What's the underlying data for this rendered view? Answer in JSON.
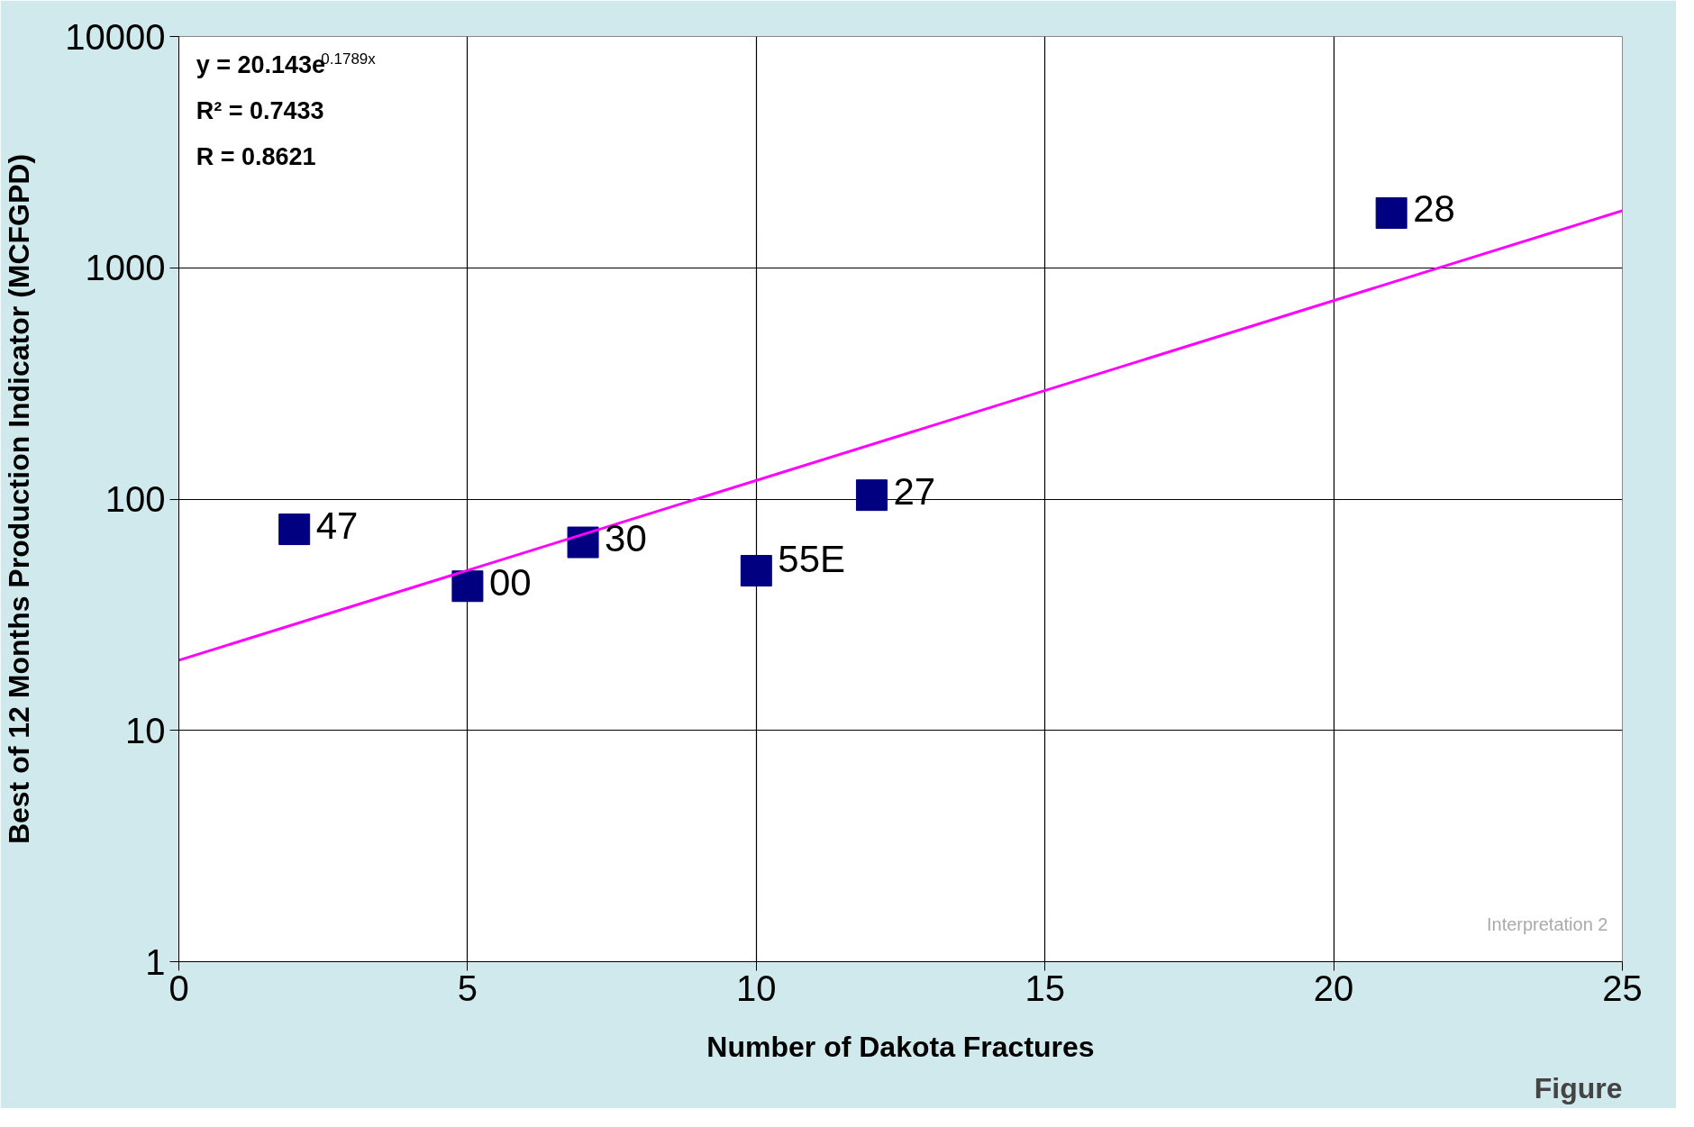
{
  "chart_data": {
    "type": "scatter",
    "xlabel": "Number of Dakota Fractures",
    "ylabel": "Best of 12 Months Production Indicator (MCFGPD)",
    "log": "y",
    "xlim": [
      0,
      25
    ],
    "xticks": [
      0,
      5,
      10,
      15,
      20,
      25
    ],
    "ylim": [
      1,
      10000
    ],
    "yticks": [
      1,
      10,
      100,
      1000,
      10000
    ],
    "grid": true,
    "series": [
      {
        "marker": "square",
        "color": "#000080",
        "x": [
          2,
          5,
          7,
          10,
          12,
          21
        ],
        "values": [
          74,
          42,
          65,
          49,
          104,
          1725
        ]
      },
      {
        "type": "line",
        "color": "#ff00ff",
        "x": [
          0,
          25
        ],
        "values": [
          20.1,
          1765
        ]
      }
    ],
    "annotations": [
      {
        "text": "47",
        "x": 2,
        "y": 74
      },
      {
        "text": "00",
        "x": 5,
        "y": 42
      },
      {
        "text": "30",
        "x": 7,
        "y": 65
      },
      {
        "text": "55E",
        "x": 10,
        "y": 49
      },
      {
        "text": "27",
        "x": 12,
        "y": 104
      },
      {
        "text": "28",
        "x": 21,
        "y": 1725
      },
      "y = 20.143e$^{0.1789x}$",
      "R² = 0.7433",
      "R = 0.8621",
      "Interpretation 2",
      "Figure"
    ]
  }
}
